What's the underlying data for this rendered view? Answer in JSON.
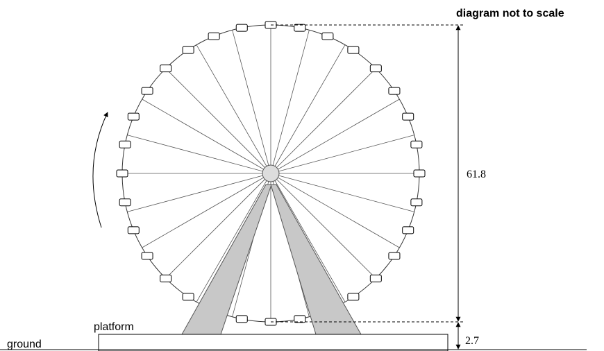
{
  "note_title": "diagram not to scale",
  "labels": {
    "height": "61.8",
    "platform_height": "2.7",
    "platform": "platform",
    "ground": "ground"
  }
}
